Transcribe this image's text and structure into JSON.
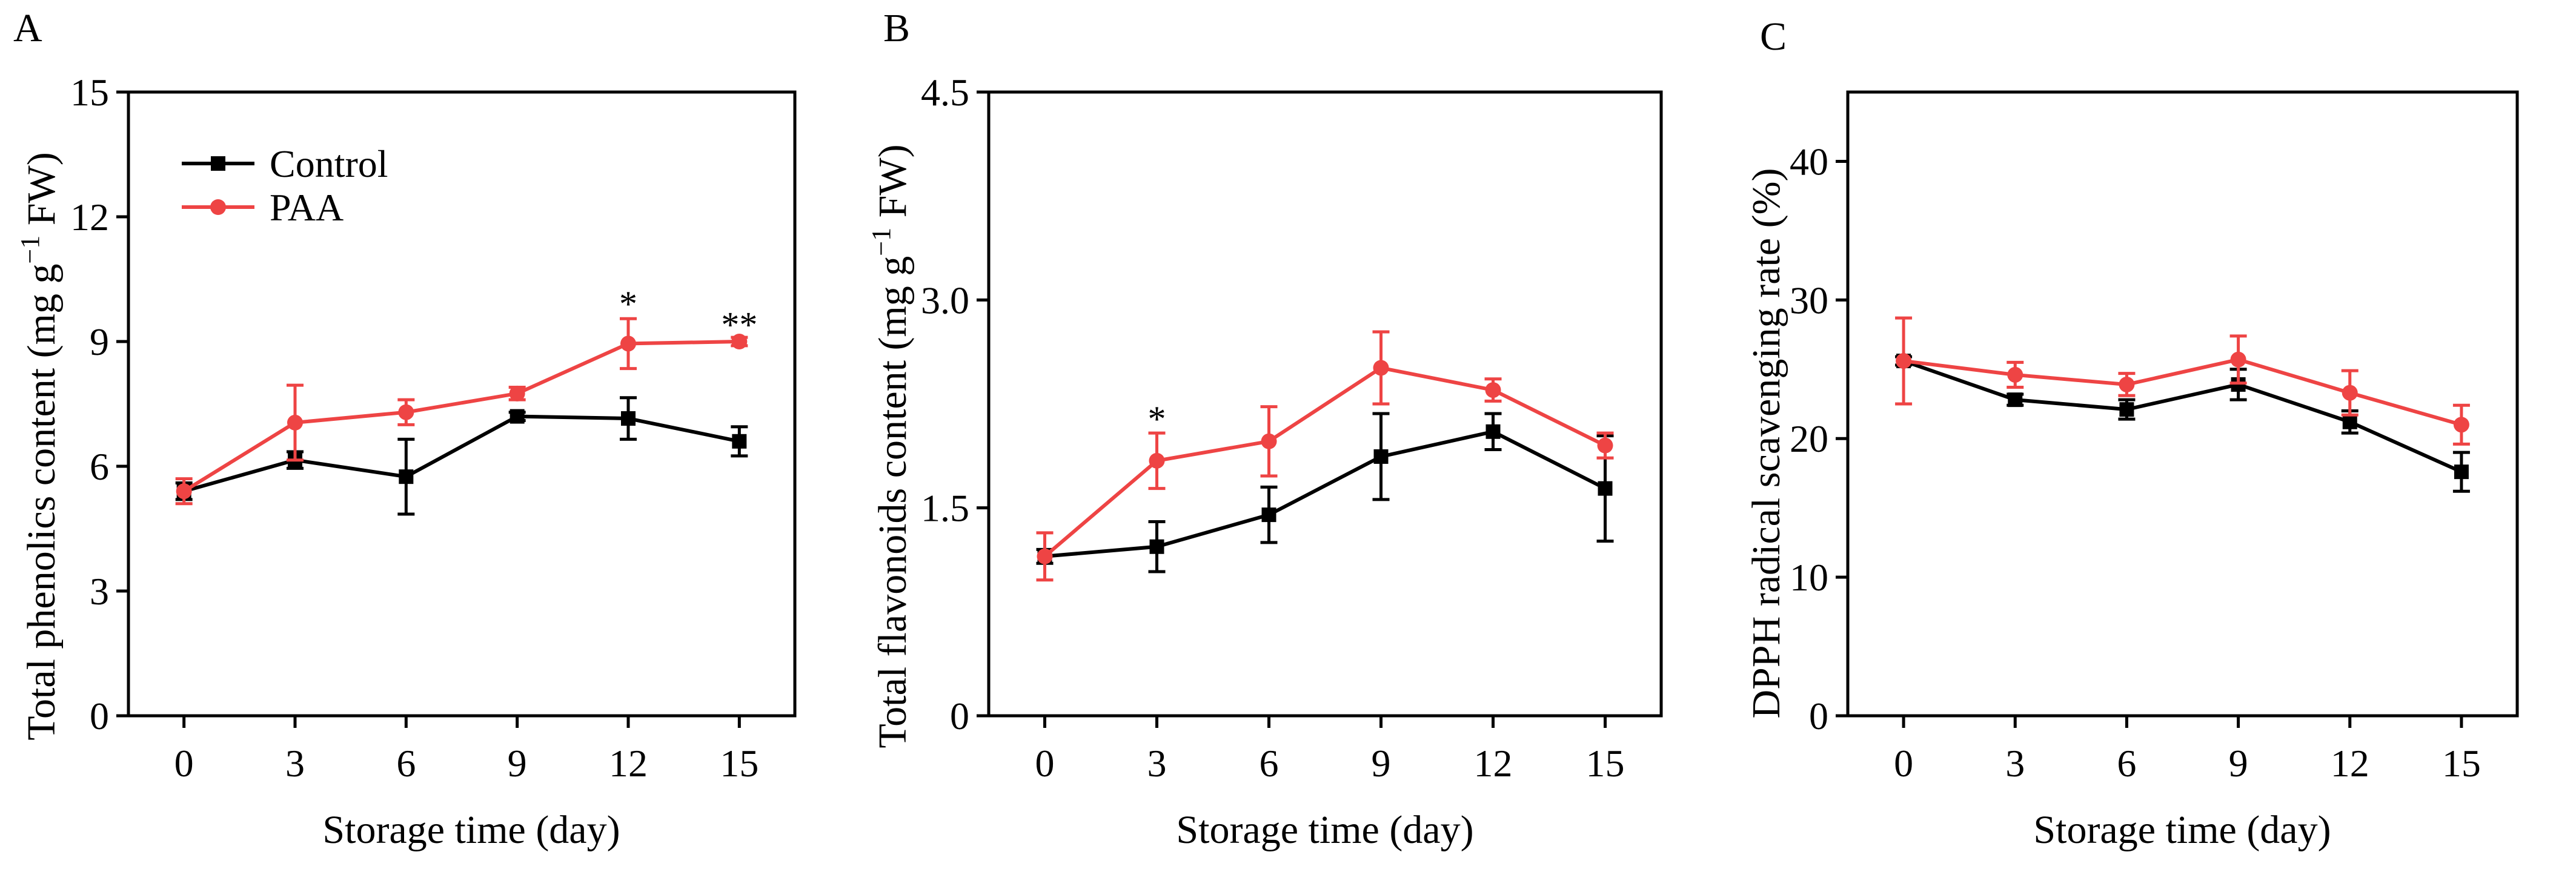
{
  "colors": {
    "control": "#000000",
    "paa": "#ee4444"
  },
  "legend": {
    "control": "Control",
    "paa": "PAA"
  },
  "chart_data": [
    {
      "panel": "A",
      "type": "line",
      "xlabel": "Storage time (day)",
      "ylabel_main": "Total phenolics content (mg g",
      "ylabel_sup": "−1",
      "ylabel_tail": " FW)",
      "x": [
        0,
        3,
        6,
        9,
        12,
        15
      ],
      "xlim": [
        -1.5,
        16.5
      ],
      "ylim": [
        0,
        15
      ],
      "yticks": [
        0,
        3,
        6,
        9,
        12,
        15
      ],
      "ytick_labels": [
        "0",
        "3",
        "6",
        "9",
        "12",
        "15"
      ],
      "legend": "top-left",
      "series": [
        {
          "name": "Control",
          "values": [
            5.4,
            6.15,
            5.75,
            7.2,
            7.15,
            6.6
          ],
          "errors": [
            0.2,
            0.2,
            0.9,
            0.1,
            0.5,
            0.35
          ]
        },
        {
          "name": "PAA",
          "values": [
            5.4,
            7.05,
            7.3,
            7.75,
            8.95,
            9.0
          ],
          "errors": [
            0.3,
            0.9,
            0.3,
            0.15,
            0.6,
            0.1
          ]
        }
      ],
      "annotations": [
        {
          "x": 12,
          "y": 9.9,
          "text": "*"
        },
        {
          "x": 15,
          "y": 9.4,
          "text": "**"
        }
      ]
    },
    {
      "panel": "B",
      "type": "line",
      "xlabel": "Storage time (day)",
      "ylabel_main": "Total flavonoids content (mg g",
      "ylabel_sup": "−1",
      "ylabel_tail": " FW)",
      "x": [
        0,
        3,
        6,
        9,
        12,
        15
      ],
      "xlim": [
        -1.5,
        16.5
      ],
      "ylim": [
        0,
        4.5
      ],
      "yticks": [
        0,
        1.5,
        3.0,
        4.5
      ],
      "ytick_labels": [
        "0",
        "1.5",
        "3.0",
        "4.5"
      ],
      "series": [
        {
          "name": "Control",
          "values": [
            1.15,
            1.22,
            1.45,
            1.87,
            2.05,
            1.64
          ],
          "errors": [
            0.05,
            0.18,
            0.2,
            0.31,
            0.13,
            0.38
          ]
        },
        {
          "name": "PAA",
          "values": [
            1.15,
            1.84,
            1.98,
            2.51,
            2.35,
            1.95
          ],
          "errors": [
            0.17,
            0.2,
            0.25,
            0.26,
            0.08,
            0.09
          ]
        }
      ],
      "annotations": [
        {
          "x": 3,
          "y": 2.14,
          "text": "*"
        }
      ]
    },
    {
      "panel": "C",
      "type": "line",
      "xlabel": "Storage time (day)",
      "ylabel_main": "DPPH radical scavenging rate (%)",
      "ylabel_sup": "",
      "ylabel_tail": "",
      "x": [
        0,
        3,
        6,
        9,
        12,
        15
      ],
      "xlim": [
        -1.5,
        16.5
      ],
      "ylim": [
        0,
        45
      ],
      "yticks": [
        0,
        10,
        20,
        30,
        40
      ],
      "ytick_labels": [
        "0",
        "10",
        "20",
        "30",
        "40"
      ],
      "series": [
        {
          "name": "Control",
          "values": [
            25.6,
            22.8,
            22.1,
            23.9,
            21.2,
            17.6
          ],
          "errors": [
            0.3,
            0.4,
            0.7,
            1.1,
            0.8,
            1.4
          ]
        },
        {
          "name": "PAA",
          "values": [
            25.6,
            24.6,
            23.9,
            25.7,
            23.3,
            21.0
          ],
          "errors": [
            3.1,
            0.9,
            0.8,
            1.7,
            1.6,
            1.4
          ]
        }
      ],
      "annotations": []
    }
  ]
}
